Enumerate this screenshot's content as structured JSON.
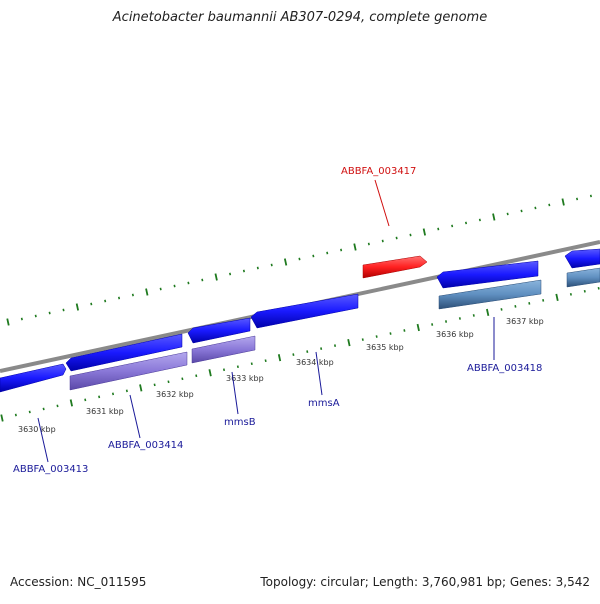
{
  "title": "Acinetobacter baumannii AB307-0294, complete genome",
  "footer": {
    "accession": "Accession: NC_011595",
    "summary": "Topology: circular; Length: 3,760,981 bp; Genes: 3,542"
  },
  "scale_ticks": [
    "3630 kbp",
    "3631 kbp",
    "3632 kbp",
    "3633 kbp",
    "3634 kbp",
    "3635 kbp",
    "3636 kbp",
    "3637 kbp"
  ],
  "gene_labels": {
    "ABBFA_003417": "ABBFA_003417",
    "ABBFA_003418": "ABBFA_003418",
    "mmsA": "mmsA",
    "mmsB": "mmsB",
    "ABBFA_003414": "ABBFA_003414",
    "ABBFA_003413": "ABBFA_003413"
  },
  "colors": {
    "backbone": "#8a8a8a",
    "tick": "#1f7a1f",
    "cds_blue": "#1a1aff",
    "gene_purple": "#8a78d8",
    "gene_steel": "#5f8fc0",
    "highlight": "#ff2020",
    "label_blue": "#1a1a99",
    "label_red": "#d01010"
  }
}
